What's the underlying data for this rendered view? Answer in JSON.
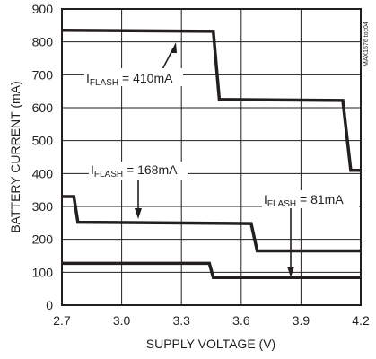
{
  "chart_data": {
    "type": "line",
    "xlabel": "SUPPLY VOLTAGE (V)",
    "ylabel": "BATTERY CURRENT (mA)",
    "xlim": [
      2.7,
      4.2
    ],
    "ylim": [
      0,
      900
    ],
    "x_ticks": [
      "2.7",
      "3.0",
      "3.3",
      "3.6",
      "3.9",
      "4.2"
    ],
    "y_ticks": [
      "0",
      "100",
      "200",
      "300",
      "400",
      "500",
      "600",
      "700",
      "800",
      "900"
    ],
    "grid": true,
    "side_label": "MAX1576 toc04",
    "series": [
      {
        "id": "410",
        "label_main": "I",
        "label_sub": "FLASH",
        "label_rest": " = 410mA",
        "points": [
          [
            2.7,
            835
          ],
          [
            3.46,
            832
          ],
          [
            3.49,
            625
          ],
          [
            4.11,
            622
          ],
          [
            4.15,
            410
          ],
          [
            4.2,
            410
          ]
        ]
      },
      {
        "id": "168",
        "label_main": "I",
        "label_sub": "FLASH",
        "label_rest": " = 168mA",
        "points": [
          [
            2.7,
            330
          ],
          [
            2.76,
            330
          ],
          [
            2.78,
            252
          ],
          [
            3.65,
            248
          ],
          [
            3.68,
            165
          ],
          [
            4.2,
            165
          ]
        ]
      },
      {
        "id": "81",
        "label_main": "I",
        "label_sub": "FLASH",
        "label_rest": " = 81mA",
        "points": [
          [
            2.7,
            127
          ],
          [
            3.44,
            127
          ],
          [
            3.46,
            84
          ],
          [
            4.2,
            84
          ]
        ]
      }
    ]
  }
}
